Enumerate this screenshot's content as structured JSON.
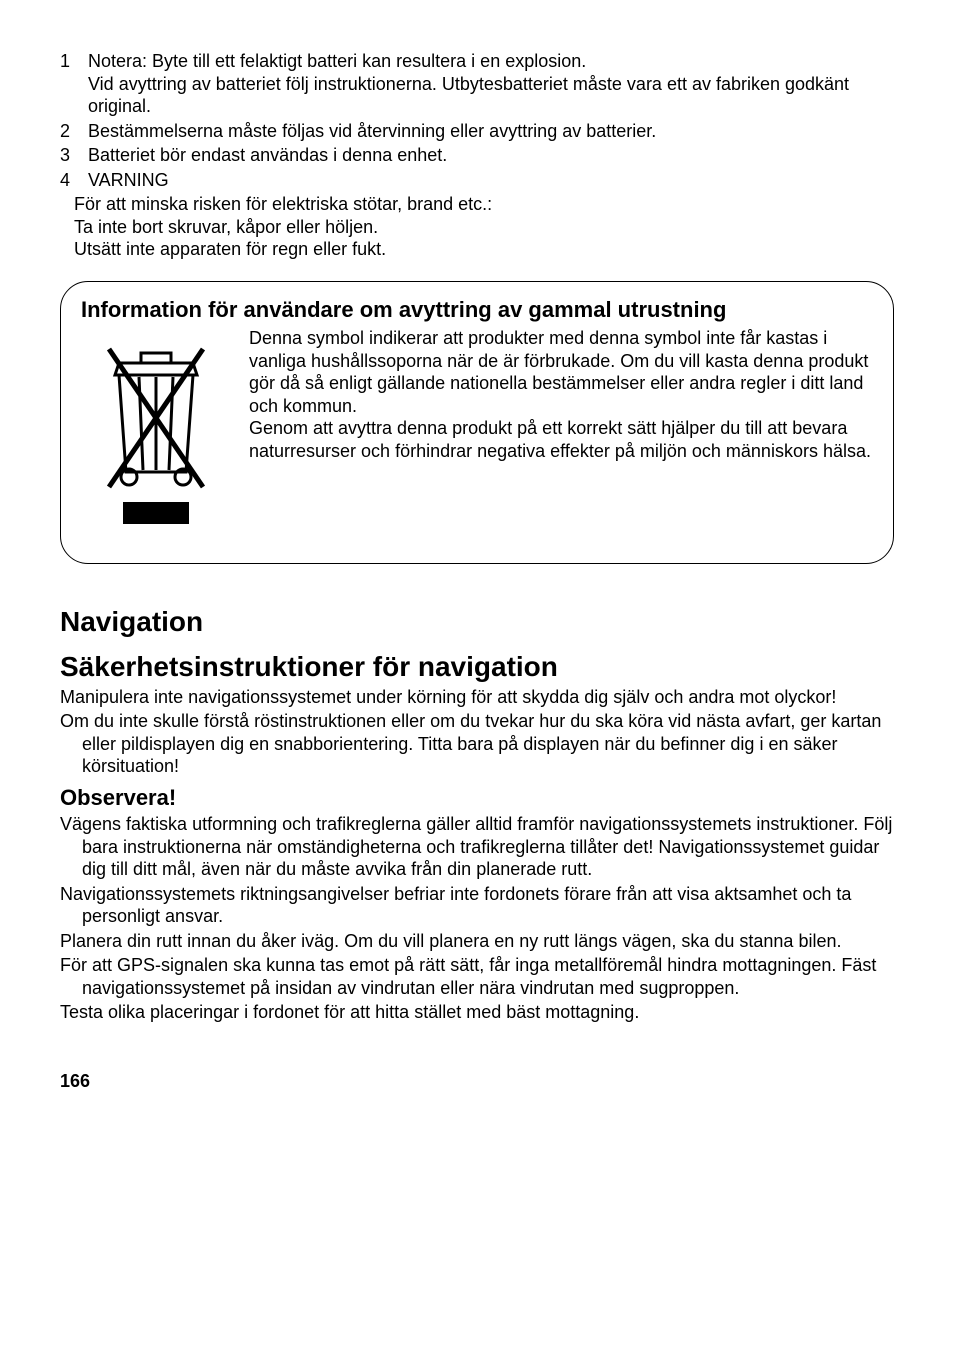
{
  "list": {
    "items": [
      {
        "num": "1",
        "text": "Notera: Byte till ett felaktigt batteri kan resultera i en explosion.\nVid avyttring av batteriet följ instruktionerna. Utbytesbatteriet måste vara ett av fabriken godkänt original."
      },
      {
        "num": "2",
        "text": "Bestämmelserna måste följas vid återvinning eller avyttring av batterier."
      },
      {
        "num": "3",
        "text": "Batteriet bör endast användas i denna enhet."
      },
      {
        "num": "4",
        "text": "VARNING"
      }
    ],
    "after": [
      "För att minska risken för elektriska stötar, brand etc.:",
      "Ta inte bort skruvar, kåpor eller höljen.",
      "Utsätt inte apparaten för regn eller fukt."
    ]
  },
  "infobox": {
    "title": "Information för användare om avyttring av gammal utrustning",
    "para1": "Denna symbol indikerar att produkter med denna symbol inte får kastas i vanliga hushållssoporna när de är förbrukade. Om du vill kasta denna produkt gör då så enligt gällande nationella bestämmelser eller andra regler i ditt land och kommun.",
    "para2": "Genom att avyttra denna produkt på ett korrekt sätt hjälper du till att bevara naturresurser och förhindrar negativa effekter på miljön och människors hälsa."
  },
  "nav": {
    "h1a": "Navigation",
    "h1b": "Säkerhetsinstruktioner för navigation",
    "p1": "Manipulera inte navigationssystemet under körning för att skydda dig själv och andra mot olyckor!",
    "p2": "Om du inte skulle förstå röstinstruktionen eller om du tvekar hur du ska köra vid nästa avfart, ger kartan eller pildisplayen dig en snabborientering. Titta bara på displayen när du befinner dig i en säker körsituation!",
    "h2": "Observera!",
    "p3": "Vägens faktiska utformning och trafikreglerna gäller alltid framför navigationssystemets instruktioner. Följ bara instruktionerna när omständigheterna och trafikreglerna tillåter det! Navigationssystemet guidar dig till ditt mål, även när du måste avvika från din planerade rutt.",
    "p4": "Navigationssystemets riktningsangivelser befriar inte fordonets förare från att visa aktsamhet och ta personligt ansvar.",
    "p5": "Planera din rutt innan du åker iväg. Om du vill planera en ny rutt längs vägen, ska du stanna bilen.",
    "p6": "För att GPS-signalen ska kunna tas emot på rätt sätt, får inga metallföremål hindra mottagningen. Fäst navigationssystemet på insidan av vindrutan eller nära vindrutan med sugproppen.",
    "p7": "Testa olika placeringar i fordonet för att hitta stället med bäst mottagning."
  },
  "pagenum": "166",
  "icon": {
    "name": "weee-bin-icon"
  }
}
